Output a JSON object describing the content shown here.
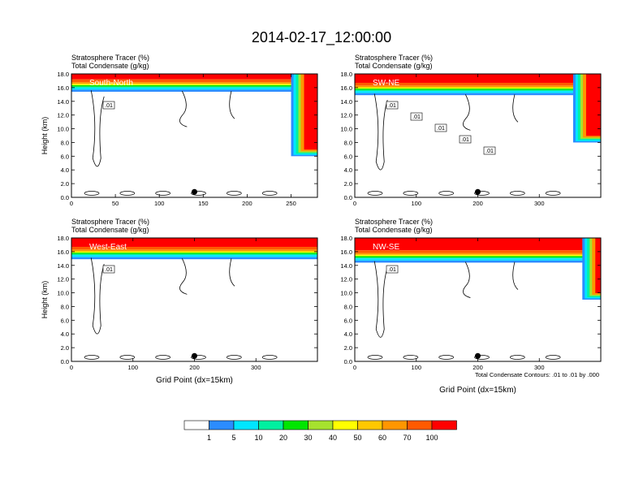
{
  "figure": {
    "title": "2014-02-17_12:00:00",
    "footnote": "Total Condensate Contours: .01 to .01 by .000"
  },
  "colorbar": {
    "colors": [
      "#ffffff",
      "#2b8cff",
      "#00e6ff",
      "#00f0a0",
      "#00e600",
      "#a6e22e",
      "#ffff00",
      "#ffc800",
      "#ff9600",
      "#ff5a00",
      "#ff0000"
    ],
    "labels": [
      "1",
      "5",
      "10",
      "20",
      "30",
      "40",
      "50",
      "60",
      "70",
      "100"
    ]
  },
  "chart_data": [
    {
      "type": "heatmap",
      "panel": "top-left",
      "label": "South-North",
      "title_line1": "Stratosphere Tracer   (%)",
      "title_line2": "Total Condensate   (g/kg)",
      "ylabel": "Height (km)",
      "xlabel": "",
      "xlim": [
        0,
        280
      ],
      "ylim": [
        0,
        18
      ],
      "xticks": [
        "0",
        "50",
        "100",
        "150",
        "200",
        "250"
      ],
      "xtick_values": [
        0,
        50,
        100,
        150,
        200,
        250
      ],
      "yticks": [
        "0.0",
        "2.0",
        "4.0",
        "6.0",
        "8.0",
        "10.0",
        "12.0",
        "14.0",
        "16.0",
        "18.0"
      ],
      "contour_labels": [
        ".01"
      ],
      "marker_x": 140,
      "tracer_base_km": 16.0,
      "intrusion": {
        "x_start": 250,
        "x_end": 280,
        "bottom_km": 6.0
      }
    },
    {
      "type": "heatmap",
      "panel": "top-right",
      "label": "SW-NE",
      "title_line1": "Stratosphere Tracer   (%)",
      "title_line2": "Total Condensate   (g/kg)",
      "ylabel": "",
      "xlabel": "",
      "xlim": [
        0,
        400
      ],
      "ylim": [
        0,
        18
      ],
      "xticks": [
        "0",
        "100",
        "200",
        "300"
      ],
      "xtick_values": [
        0,
        100,
        200,
        300
      ],
      "yticks": [
        "0.0",
        "2.0",
        "4.0",
        "6.0",
        "8.0",
        "10.0",
        "12.0",
        "14.0",
        "16.0",
        "18.0"
      ],
      "contour_labels": [
        ".01",
        ".01",
        ".01",
        ".01",
        ".01"
      ],
      "marker_x": 200,
      "tracer_base_km": 15.5,
      "intrusion": {
        "x_start": 355,
        "x_end": 400,
        "bottom_km": 8.0
      }
    },
    {
      "type": "heatmap",
      "panel": "bottom-left",
      "label": "West-East",
      "title_line1": "Stratosphere Tracer   (%)",
      "title_line2": "Total Condensate   (g/kg)",
      "ylabel": "Height (km)",
      "xlabel": "Grid Point (dx=15km)",
      "xlim": [
        0,
        400
      ],
      "ylim": [
        0,
        18
      ],
      "xticks": [
        "0",
        "100",
        "200",
        "300"
      ],
      "xtick_values": [
        0,
        100,
        200,
        300
      ],
      "yticks": [
        "0.0",
        "2.0",
        "4.0",
        "6.0",
        "8.0",
        "10.0",
        "12.0",
        "14.0",
        "16.0",
        "18.0"
      ],
      "contour_labels": [
        ".01"
      ],
      "marker_x": 200,
      "tracer_base_km": 15.5,
      "intrusion": null
    },
    {
      "type": "heatmap",
      "panel": "bottom-right",
      "label": "NW-SE",
      "title_line1": "Stratosphere Tracer   (%)",
      "title_line2": "Total Condensate   (g/kg)",
      "ylabel": "",
      "xlabel": "Grid Point (dx=15km)",
      "xlim": [
        0,
        400
      ],
      "ylim": [
        0,
        18
      ],
      "xticks": [
        "0",
        "100",
        "200",
        "300"
      ],
      "xtick_values": [
        0,
        100,
        200,
        300
      ],
      "yticks": [
        "0.0",
        "2.0",
        "4.0",
        "6.0",
        "8.0",
        "10.0",
        "12.0",
        "14.0",
        "16.0",
        "18.0"
      ],
      "contour_labels": [
        ".01"
      ],
      "marker_x": 200,
      "tracer_base_km": 15.0,
      "intrusion": {
        "x_start": 370,
        "x_end": 400,
        "bottom_km": 9.0
      }
    }
  ]
}
